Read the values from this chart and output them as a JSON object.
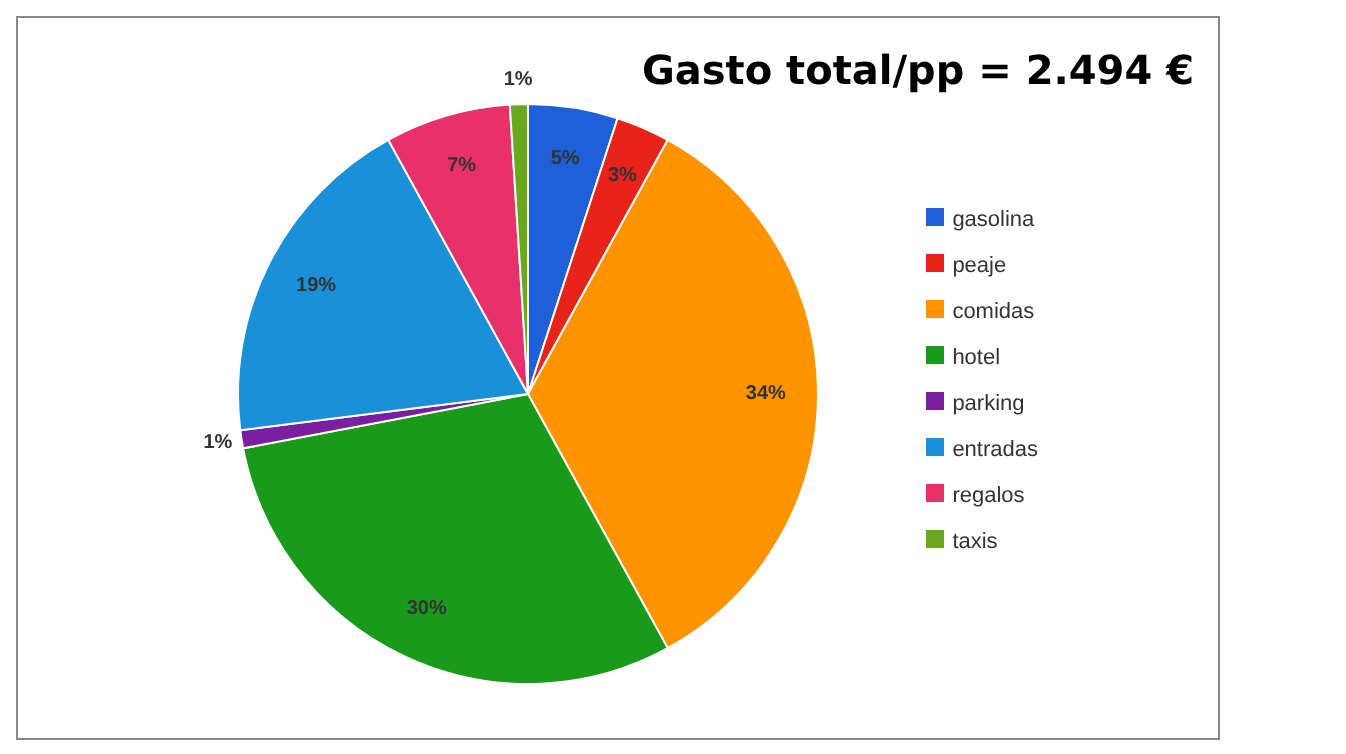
{
  "chart_data": {
    "type": "pie",
    "title": "Gasto total/pp = 2.494 €",
    "categories": [
      "gasolina",
      "peaje",
      "comidas",
      "hotel",
      "parking",
      "entradas",
      "regalos",
      "taxis"
    ],
    "values": [
      5,
      3,
      34,
      30,
      1,
      19,
      7,
      1
    ],
    "colors": [
      "#1f5fd8",
      "#e8231a",
      "#ff9400",
      "#1a9a1a",
      "#7a1fa0",
      "#1a90d8",
      "#e8306a",
      "#6aa820"
    ],
    "value_labels": [
      "5%",
      "3%",
      "34%",
      "30%",
      "1%",
      "19%",
      "7%",
      "1%"
    ],
    "legend": "right"
  }
}
